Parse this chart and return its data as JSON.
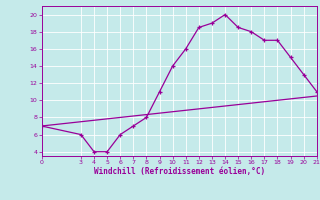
{
  "xlabel": "Windchill (Refroidissement éolien,°C)",
  "xlim": [
    0,
    21
  ],
  "ylim": [
    3.5,
    21
  ],
  "xticks": [
    0,
    3,
    4,
    5,
    6,
    7,
    8,
    9,
    10,
    11,
    12,
    13,
    14,
    15,
    16,
    17,
    18,
    19,
    20,
    21
  ],
  "yticks": [
    4,
    6,
    8,
    10,
    12,
    14,
    16,
    18,
    20
  ],
  "bg_color": "#c5eaea",
  "line_color": "#990099",
  "curve_x": [
    0,
    3,
    4,
    5,
    6,
    7,
    8,
    9,
    10,
    11,
    12,
    13,
    14,
    15,
    16,
    17,
    18,
    19,
    20,
    21
  ],
  "curve_y": [
    7,
    6,
    4,
    4,
    6,
    7,
    8,
    11,
    14,
    16,
    18.5,
    19,
    20,
    18.5,
    18,
    17,
    17,
    15,
    13,
    11
  ],
  "line_x": [
    0,
    21
  ],
  "line_y": [
    7,
    10.5
  ],
  "marker": "+"
}
